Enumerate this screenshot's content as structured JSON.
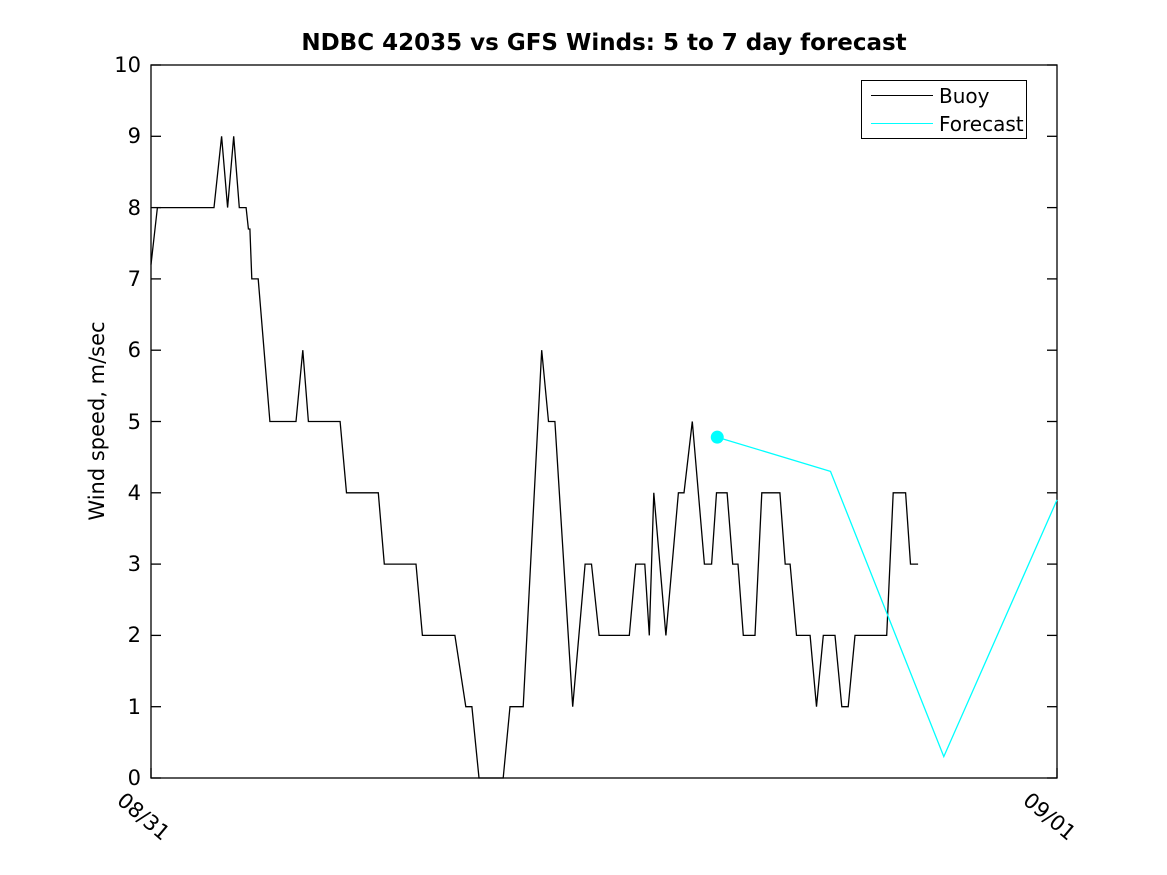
{
  "figure": {
    "background_color": "#ffffff",
    "axis_color": "#000000"
  },
  "chart_data": {
    "type": "line",
    "title": "NDBC 42035 vs GFS Winds: 5 to 7 day forecast",
    "xlabel": "",
    "ylabel": "Wind speed, m/sec",
    "ylim": [
      0,
      10
    ],
    "y_ticks": [
      0,
      1,
      2,
      3,
      4,
      5,
      6,
      7,
      8,
      9,
      10
    ],
    "grid": false,
    "x_axis": {
      "unit": "hours since 08/31 00:00",
      "range_hours": [
        0,
        24
      ],
      "tick_hours": [
        0,
        24
      ],
      "tick_labels": [
        "08/31",
        "09/01"
      ],
      "tick_label_rotation_deg": 40
    },
    "legend": {
      "position": "upper right",
      "entries": [
        {
          "label": "Buoy",
          "color": "#000000"
        },
        {
          "label": "Forecast",
          "color": "#00ffff"
        }
      ]
    },
    "series": [
      {
        "name": "Buoy",
        "color": "#000000",
        "line_width": 1.3,
        "marker": "none",
        "points_hours_value": [
          [
            0.0,
            7.2
          ],
          [
            0.17,
            8
          ],
          [
            1.67,
            8
          ],
          [
            1.87,
            9
          ],
          [
            2.03,
            8
          ],
          [
            2.19,
            9
          ],
          [
            2.34,
            8
          ],
          [
            2.52,
            8
          ],
          [
            2.58,
            7.7
          ],
          [
            2.62,
            7.7
          ],
          [
            2.67,
            7
          ],
          [
            2.84,
            7
          ],
          [
            3.15,
            5
          ],
          [
            3.84,
            5
          ],
          [
            4.02,
            6
          ],
          [
            4.17,
            5
          ],
          [
            5.01,
            5
          ],
          [
            5.18,
            4
          ],
          [
            6.02,
            4
          ],
          [
            6.18,
            3
          ],
          [
            7.02,
            3
          ],
          [
            7.19,
            2
          ],
          [
            8.05,
            2
          ],
          [
            8.34,
            1
          ],
          [
            8.5,
            1
          ],
          [
            8.69,
            0
          ],
          [
            9.33,
            0
          ],
          [
            9.51,
            1
          ],
          [
            9.86,
            1
          ],
          [
            10.35,
            6
          ],
          [
            10.53,
            5
          ],
          [
            10.7,
            5
          ],
          [
            11.17,
            1
          ],
          [
            11.5,
            3
          ],
          [
            11.67,
            3
          ],
          [
            11.87,
            2
          ],
          [
            12.67,
            2
          ],
          [
            12.84,
            3
          ],
          [
            13.08,
            3
          ],
          [
            13.2,
            2
          ],
          [
            13.32,
            4
          ],
          [
            13.64,
            2
          ],
          [
            13.97,
            4
          ],
          [
            14.12,
            4
          ],
          [
            14.34,
            5
          ],
          [
            14.66,
            3
          ],
          [
            14.85,
            3
          ],
          [
            14.98,
            4
          ],
          [
            15.26,
            4
          ],
          [
            15.41,
            3
          ],
          [
            15.55,
            3
          ],
          [
            15.69,
            2
          ],
          [
            16.0,
            2
          ],
          [
            16.18,
            4
          ],
          [
            16.66,
            4
          ],
          [
            16.8,
            3
          ],
          [
            16.93,
            3
          ],
          [
            17.1,
            2
          ],
          [
            17.46,
            2
          ],
          [
            17.63,
            1
          ],
          [
            17.81,
            2
          ],
          [
            18.12,
            2
          ],
          [
            18.3,
            1
          ],
          [
            18.47,
            1
          ],
          [
            18.65,
            2
          ],
          [
            19.49,
            2
          ],
          [
            19.66,
            4
          ],
          [
            19.99,
            4
          ],
          [
            20.12,
            3
          ],
          [
            20.32,
            3
          ]
        ]
      },
      {
        "name": "Forecast",
        "color": "#00ffff",
        "line_width": 1.3,
        "marker": "filled-circle-at-first-point",
        "marker_radius": 6.5,
        "points_hours_value": [
          [
            15.0,
            4.78
          ],
          [
            18.0,
            4.3
          ],
          [
            21.0,
            0.3
          ],
          [
            24.0,
            3.9
          ]
        ]
      }
    ]
  }
}
